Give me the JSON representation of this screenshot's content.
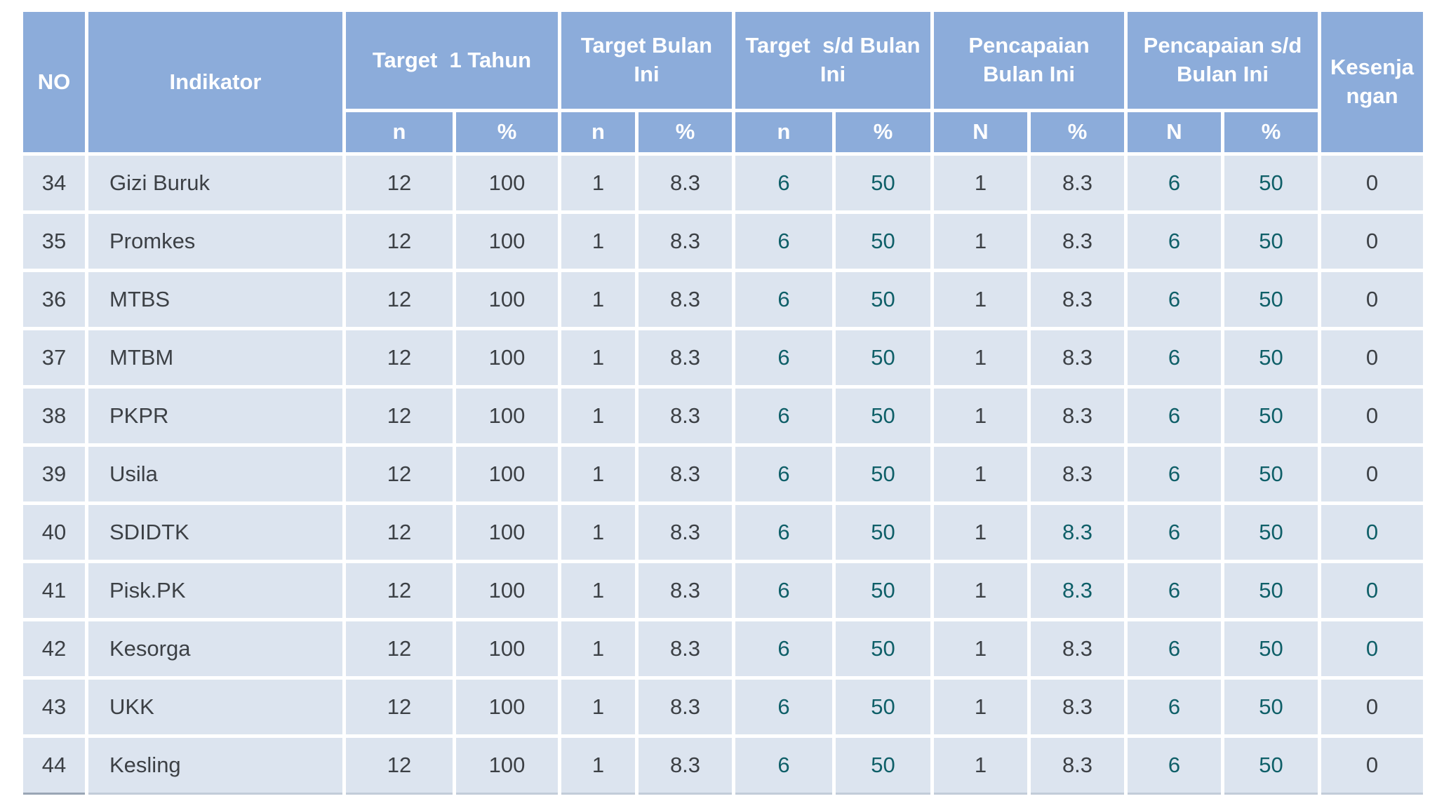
{
  "colors": {
    "header_bg": "#8cacda",
    "cell_bg": "#dce4ef",
    "border_gap": "#ffffff",
    "text_dark": "#3c4045",
    "text_teal": "#0f5f68",
    "header_text": "#ffffff"
  },
  "header": {
    "no": "NO",
    "indikator": "Indikator",
    "groups": [
      {
        "label": "Target  1 Tahun",
        "sub": [
          "n",
          "%"
        ]
      },
      {
        "label": "Target Bulan\nIni",
        "sub": [
          "n",
          "%"
        ]
      },
      {
        "label": "Target  s/d Bulan\nIni",
        "sub": [
          "n",
          "%"
        ]
      },
      {
        "label": "Pencapaian\nBulan Ini",
        "sub": [
          "N",
          "%"
        ]
      },
      {
        "label": "Pencapaian s/d\nBulan Ini",
        "sub": [
          "N",
          "%"
        ]
      }
    ],
    "kesenjangan": "Kesenja\nngan"
  },
  "value_columns": [
    "target_1_tahun_n",
    "target_1_tahun_pct",
    "target_bulan_ini_n",
    "target_bulan_ini_pct",
    "target_sd_bulan_ini_n",
    "target_sd_bulan_ini_pct",
    "pencapaian_bulan_ini_n",
    "pencapaian_bulan_ini_pct",
    "pencapaian_sd_bulan_ini_n",
    "pencapaian_sd_bulan_ini_pct",
    "kesenjangan"
  ],
  "rows": [
    {
      "no": "34",
      "indikator": "Gizi Buruk",
      "values": [
        "12",
        "100",
        "1",
        "8.3",
        "6",
        "50",
        "1",
        "8.3",
        "6",
        "50",
        "0"
      ],
      "teal_columns": [
        4,
        5,
        8,
        9
      ]
    },
    {
      "no": "35",
      "indikator": "Promkes",
      "values": [
        "12",
        "100",
        "1",
        "8.3",
        "6",
        "50",
        "1",
        "8.3",
        "6",
        "50",
        "0"
      ],
      "teal_columns": [
        4,
        5,
        8,
        9
      ]
    },
    {
      "no": "36",
      "indikator": "MTBS",
      "values": [
        "12",
        "100",
        "1",
        "8.3",
        "6",
        "50",
        "1",
        "8.3",
        "6",
        "50",
        "0"
      ],
      "teal_columns": [
        4,
        5,
        8,
        9
      ]
    },
    {
      "no": "37",
      "indikator": "MTBM",
      "values": [
        "12",
        "100",
        "1",
        "8.3",
        "6",
        "50",
        "1",
        "8.3",
        "6",
        "50",
        "0"
      ],
      "teal_columns": [
        4,
        5,
        8,
        9
      ]
    },
    {
      "no": "38",
      "indikator": "PKPR",
      "values": [
        "12",
        "100",
        "1",
        "8.3",
        "6",
        "50",
        "1",
        "8.3",
        "6",
        "50",
        "0"
      ],
      "teal_columns": [
        4,
        5,
        8,
        9
      ]
    },
    {
      "no": "39",
      "indikator": "Usila",
      "values": [
        "12",
        "100",
        "1",
        "8.3",
        "6",
        "50",
        "1",
        "8.3",
        "6",
        "50",
        "0"
      ],
      "teal_columns": [
        4,
        5,
        8,
        9
      ]
    },
    {
      "no": "40",
      "indikator": "SDIDTK",
      "values": [
        "12",
        "100",
        "1",
        "8.3",
        "6",
        "50",
        "1",
        "8.3",
        "6",
        "50",
        "0"
      ],
      "teal_columns": [
        4,
        5,
        7,
        8,
        9,
        10
      ]
    },
    {
      "no": "41",
      "indikator": "Pisk.PK",
      "values": [
        "12",
        "100",
        "1",
        "8.3",
        "6",
        "50",
        "1",
        "8.3",
        "6",
        "50",
        "0"
      ],
      "teal_columns": [
        4,
        5,
        7,
        8,
        9,
        10
      ]
    },
    {
      "no": "42",
      "indikator": "Kesorga",
      "values": [
        "12",
        "100",
        "1",
        "8.3",
        "6",
        "50",
        "1",
        "8.3",
        "6",
        "50",
        "0"
      ],
      "teal_columns": [
        4,
        5,
        8,
        9,
        10
      ]
    },
    {
      "no": "43",
      "indikator": "UKK",
      "values": [
        "12",
        "100",
        "1",
        "8.3",
        "6",
        "50",
        "1",
        "8.3",
        "6",
        "50",
        "0"
      ],
      "teal_columns": [
        4,
        5,
        8,
        9
      ]
    },
    {
      "no": "44",
      "indikator": "Kesling",
      "values": [
        "12",
        "100",
        "1",
        "8.3",
        "6",
        "50",
        "1",
        "8.3",
        "6",
        "50",
        "0"
      ],
      "teal_columns": [
        4,
        5,
        8,
        9
      ]
    }
  ]
}
